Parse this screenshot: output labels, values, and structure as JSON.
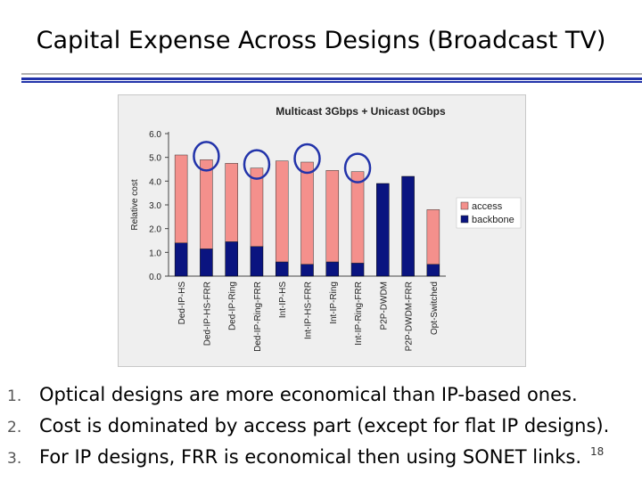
{
  "slide": {
    "title": "Capital Expense Across Designs (Broadcast TV)",
    "page_number": "18"
  },
  "bullets": [
    {
      "num": "1.",
      "text": "Optical designs are more economical than IP-based ones."
    },
    {
      "num": "2.",
      "text": "Cost is dominated by access part (except for flat IP designs)."
    },
    {
      "num": "3.",
      "text": "For IP designs, FRR is economical then using SONET links."
    }
  ],
  "colors": {
    "access": "#f4908c",
    "backbone": "#0a1480",
    "circle": "#2233aa",
    "rule_blue": "#2233aa"
  },
  "chart_data": {
    "type": "bar",
    "stacked": true,
    "title": "Multicast 3Gbps + Unicast 0Gbps",
    "ylabel": "Relative cost",
    "xlabel": "",
    "ylim": [
      0,
      6
    ],
    "yticks": [
      "0.0",
      "1.0",
      "2.0",
      "3.0",
      "4.0",
      "5.0",
      "6.0"
    ],
    "categories": [
      "Ded-IP-HS",
      "Ded-IP-HS-FRR",
      "Ded-IP-Ring",
      "Ded-IP-Ring-FRR",
      "Int-IP-HS",
      "Int-IP-HS-FRR",
      "Int-IP-Ring",
      "Int-IP-Ring-FRR",
      "P2P-DWDM",
      "P2P-DWDM-FRR",
      "Opt-Switched"
    ],
    "series": [
      {
        "name": "access",
        "values": [
          3.7,
          3.75,
          3.3,
          3.3,
          4.25,
          4.3,
          3.85,
          3.85,
          0,
          0,
          2.3
        ]
      },
      {
        "name": "backbone",
        "values": [
          1.4,
          1.15,
          1.45,
          1.25,
          0.6,
          0.5,
          0.6,
          0.55,
          3.9,
          4.2,
          0.5
        ]
      }
    ],
    "legend": [
      "access",
      "backbone"
    ],
    "legend_position": "right",
    "grid": false,
    "highlighted_categories": [
      "Ded-IP-HS-FRR",
      "Ded-IP-Ring-FRR",
      "Int-IP-HS-FRR",
      "Int-IP-Ring-FRR"
    ]
  }
}
